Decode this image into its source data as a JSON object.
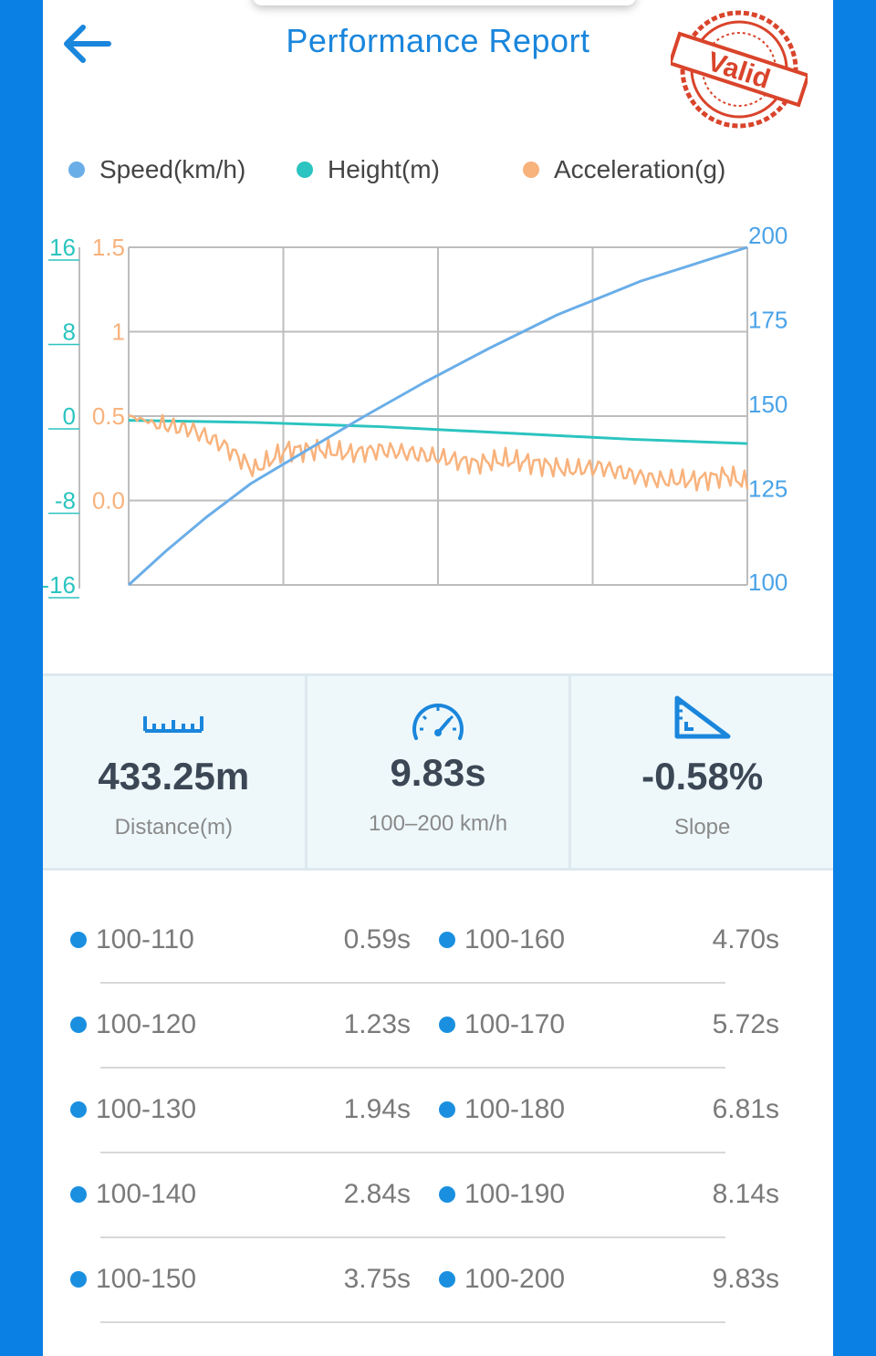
{
  "header": {
    "title": "Performance Report",
    "stamp_text": "Valid"
  },
  "legend": {
    "items": [
      {
        "label": "Speed(km/h)",
        "color": "#5aa8e8"
      },
      {
        "label": "Height(m)",
        "color": "#2bc4c0"
      },
      {
        "label": "Acceleration(g)",
        "color": "#f8b27c"
      }
    ]
  },
  "chart_data": {
    "type": "line",
    "axes": {
      "height_ticks": [
        "16",
        "8",
        "0",
        "-8",
        "-16"
      ],
      "accel_ticks": [
        "1.5",
        "1",
        "0.5",
        "0.0"
      ],
      "speed_ticks": [
        "200",
        "175",
        "150",
        "125",
        "100"
      ]
    },
    "ylim_height": [
      -16,
      16
    ],
    "ylim_accel": [
      -0.5,
      1.5
    ],
    "ylim_speed": [
      100,
      200
    ],
    "xlim": [
      0,
      9.83
    ],
    "series": [
      {
        "name": "Speed(km/h)",
        "color": "#6aaee8",
        "x": [
          0,
          0.59,
          1.23,
          1.94,
          2.84,
          3.75,
          4.7,
          5.72,
          6.81,
          8.14,
          9.83
        ],
        "values": [
          100,
          110,
          120,
          130,
          140,
          150,
          160,
          170,
          180,
          190,
          200
        ]
      },
      {
        "name": "Height(m)",
        "color": "#2bc4c0",
        "x": [
          0,
          2,
          4,
          6,
          8,
          9.83
        ],
        "values": [
          -0.4,
          -0.6,
          -1.0,
          -1.6,
          -2.2,
          -2.6
        ]
      },
      {
        "name": "Acceleration(g)",
        "color": "#f8b27c",
        "x": [
          0,
          0.5,
          1.0,
          1.5,
          2.0,
          2.5,
          3.0,
          3.5,
          4.0,
          4.5,
          5.0,
          5.5,
          6.0,
          6.5,
          7.0,
          7.5,
          8.0,
          8.5,
          9.0,
          9.5,
          9.83
        ],
        "values": [
          0.5,
          0.45,
          0.42,
          0.33,
          0.18,
          0.3,
          0.3,
          0.28,
          0.3,
          0.28,
          0.25,
          0.22,
          0.24,
          0.22,
          0.18,
          0.2,
          0.15,
          0.12,
          0.12,
          0.15,
          0.1
        ]
      }
    ]
  },
  "stats": [
    {
      "icon": "ruler-icon",
      "value": "433.25m",
      "label": "Distance(m)"
    },
    {
      "icon": "speedometer-icon",
      "value": "9.83s",
      "label": "100–200 km/h"
    },
    {
      "icon": "slope-icon",
      "value": "-0.58%",
      "label": "Slope"
    }
  ],
  "splits": [
    {
      "left_range": "100-110",
      "left_time": "0.59s",
      "right_range": "100-160",
      "right_time": "4.70s"
    },
    {
      "left_range": "100-120",
      "left_time": "1.23s",
      "right_range": "100-170",
      "right_time": "5.72s"
    },
    {
      "left_range": "100-130",
      "left_time": "1.94s",
      "right_range": "100-180",
      "right_time": "6.81s"
    },
    {
      "left_range": "100-140",
      "left_time": "2.84s",
      "right_range": "100-190",
      "right_time": "8.14s"
    },
    {
      "left_range": "100-150",
      "left_time": "3.75s",
      "right_range": "100-200",
      "right_time": "9.83s"
    }
  ],
  "colors": {
    "accent": "#0a7fe4",
    "title": "#1a86dc",
    "split_dot": "#1a8fe0"
  }
}
